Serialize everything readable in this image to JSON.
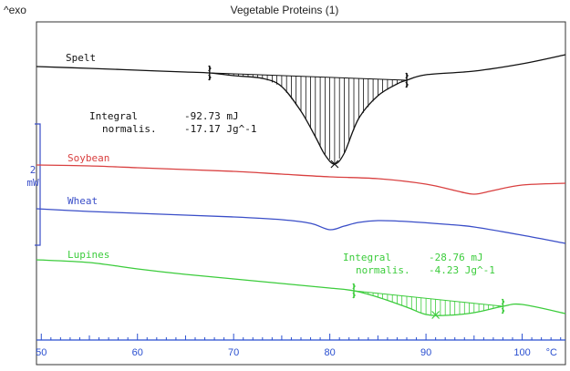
{
  "header": {
    "exo_label": "^exo",
    "title": "Vegetable Proteins (1)"
  },
  "scale_bar": {
    "value": "2",
    "unit": "mW",
    "color": "#3a4ec8"
  },
  "chart_data": {
    "type": "line",
    "title": "Vegetable Proteins (1)",
    "xlabel": "",
    "ylabel": "",
    "x_unit": "°C",
    "xlim": [
      49.5,
      104.5
    ],
    "x_ticks": [
      50,
      60,
      70,
      80,
      90,
      100
    ],
    "grid": false,
    "series": [
      {
        "name": "Spelt",
        "color": "#111111",
        "x": [
          49.5,
          55,
          60,
          65,
          67.5,
          70,
          73,
          75,
          77,
          78.5,
          79.5,
          80.5,
          81.5,
          83,
          85,
          87,
          88,
          90,
          95,
          100,
          104.5
        ],
        "y": [
          73,
          75,
          77,
          79,
          80,
          83,
          86,
          95,
          122,
          150,
          170,
          180,
          168,
          130,
          105,
          92,
          88,
          82,
          78,
          70,
          60
        ]
      },
      {
        "name": "Soybean",
        "color": "#d94040",
        "x": [
          49.5,
          55,
          60,
          65,
          70,
          75,
          80,
          85,
          90,
          93,
          95,
          97,
          100,
          104.5
        ],
        "y": [
          181,
          182,
          184,
          186,
          188,
          191,
          194,
          196,
          202,
          209,
          213,
          209,
          203,
          201
        ]
      },
      {
        "name": "Wheat",
        "color": "#3a4ec8",
        "x": [
          49.5,
          55,
          60,
          65,
          70,
          75,
          78,
          80,
          81.5,
          83,
          85,
          88,
          92,
          95,
          100,
          104.5
        ],
        "y": [
          229,
          232,
          234,
          236,
          238,
          241,
          245,
          252,
          248,
          244,
          242,
          243,
          246,
          249,
          258,
          267
        ]
      },
      {
        "name": "Lupines",
        "color": "#3ccc3c",
        "x": [
          49.5,
          55,
          60,
          65,
          70,
          75,
          80,
          82.5,
          85,
          88,
          90,
          92,
          95,
          98,
          100,
          104.5
        ],
        "y": [
          285,
          288,
          295,
          301,
          306,
          311,
          316,
          319,
          326,
          337,
          345,
          346,
          343,
          336,
          334,
          344
        ]
      }
    ],
    "peaks": [
      {
        "series": "Spelt",
        "start_x": 67.5,
        "end_x": 88,
        "peak_x": 80.5,
        "integral_label": "Integral",
        "integral_value": "-92.73 mJ",
        "normalis_label": "normalis.",
        "normalis_value": "-17.17 Jg^-1"
      },
      {
        "series": "Lupines",
        "start_x": 82.5,
        "end_x": 98,
        "peak_x": 91,
        "integral_label": "Integral",
        "integral_value": "-28.76 mJ",
        "normalis_label": "normalis.",
        "normalis_value": "-4.23 Jg^-1"
      }
    ]
  }
}
